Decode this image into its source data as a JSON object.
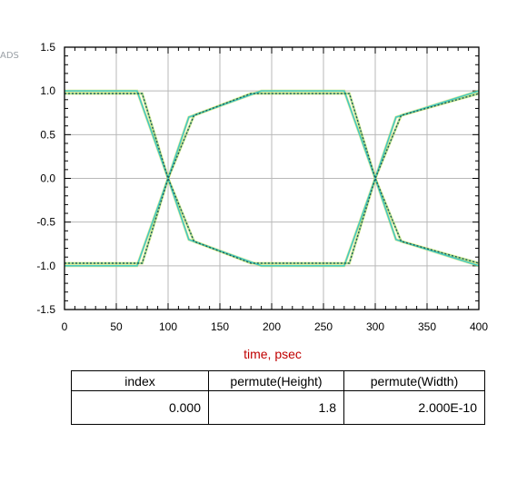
{
  "plot": {
    "y_axis_tag": "ADS",
    "xlabel": "time, psec"
  },
  "chart_data": {
    "type": "line",
    "title": "",
    "xlabel": "time, psec",
    "ylabel": "",
    "xlim": [
      0,
      400
    ],
    "ylim": [
      -1.5,
      1.5
    ],
    "x_ticks": [
      "0",
      "50",
      "100",
      "150",
      "200",
      "250",
      "300",
      "350",
      "400"
    ],
    "y_ticks": [
      "1.5",
      "1.0",
      "0.5",
      "0.0",
      "-0.5",
      "-1.0",
      "-1.5"
    ],
    "grid": true,
    "colors": {
      "trace_main": "#40c8c8",
      "trace_dark": "#1a5a5a",
      "trace_yellow": "#d8e04a",
      "trace_green": "#6fce6f",
      "frame": "#000000"
    },
    "series": [
      {
        "x": [
          0,
          70,
          100,
          120,
          190,
          270,
          300,
          320,
          400
        ],
        "y": [
          1.0,
          1.0,
          0.0,
          -0.7,
          -1.0,
          -1.0,
          0.0,
          0.7,
          1.0
        ]
      },
      {
        "x": [
          0,
          70,
          100,
          120,
          190,
          270,
          300,
          320,
          400
        ],
        "y": [
          -1.0,
          -1.0,
          0.0,
          0.7,
          1.0,
          1.0,
          0.0,
          -0.7,
          -1.0
        ]
      },
      {
        "x": [
          0,
          75,
          100,
          125,
          180,
          275,
          300,
          325,
          400
        ],
        "y": [
          0.97,
          0.97,
          0.0,
          -0.72,
          -0.97,
          -0.97,
          0.0,
          0.72,
          0.97
        ]
      },
      {
        "x": [
          0,
          75,
          100,
          125,
          180,
          275,
          300,
          325,
          400
        ],
        "y": [
          -0.97,
          -0.97,
          0.0,
          0.72,
          0.97,
          0.97,
          0.0,
          -0.72,
          -0.97
        ]
      }
    ]
  },
  "results_table": {
    "headers": [
      "index",
      "permute(Height)",
      "permute(Width)"
    ],
    "row": [
      "0.000",
      "1.8",
      "2.000E-10"
    ]
  }
}
